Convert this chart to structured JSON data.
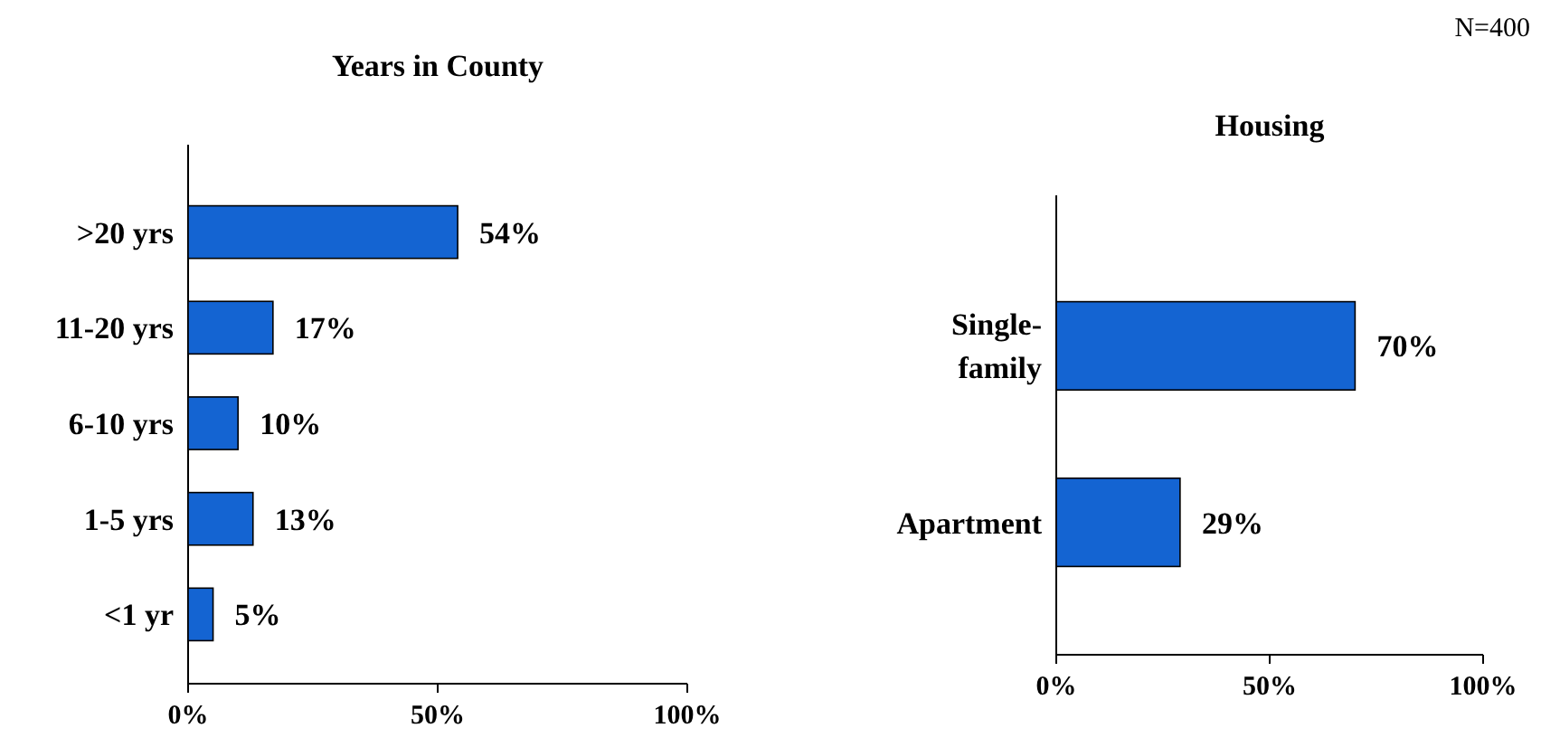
{
  "chart_data": [
    {
      "type": "bar",
      "orientation": "horizontal",
      "title": "Years in County",
      "categories": [
        ">20 yrs",
        "11-20 yrs",
        "6-10 yrs",
        "1-5 yrs",
        "<1 yr"
      ],
      "values": [
        54,
        17,
        10,
        13,
        5
      ],
      "value_labels": [
        "54%",
        "17%",
        "10%",
        "13%",
        "5%"
      ],
      "color": "#1464d2",
      "xlim": [
        0,
        100
      ],
      "xticks": [
        {
          "value": 0,
          "label": "0%"
        },
        {
          "value": 50,
          "label": "50%"
        },
        {
          "value": 100,
          "label": "100%"
        }
      ]
    },
    {
      "type": "bar",
      "orientation": "horizontal",
      "title": "Housing",
      "categories": [
        "Single-family",
        "Apartment"
      ],
      "values": [
        70,
        29
      ],
      "value_labels": [
        "70%",
        "29%"
      ],
      "color": "#1464d2",
      "xlim": [
        0,
        100
      ],
      "xticks": [
        {
          "value": 0,
          "label": "0%"
        },
        {
          "value": 50,
          "label": "50%"
        },
        {
          "value": 100,
          "label": "100%"
        }
      ],
      "annotations": [
        "N=400"
      ]
    }
  ]
}
